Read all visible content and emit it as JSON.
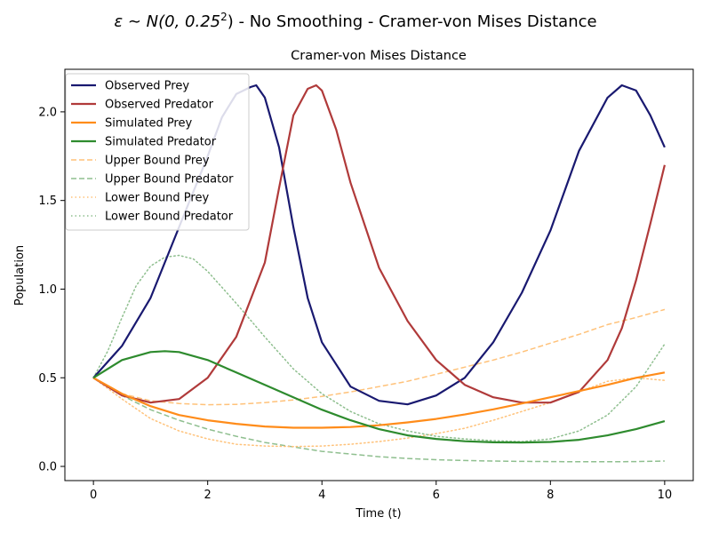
{
  "figure": {
    "suptitle_prefix": "ε ∼ N(0, 0.25",
    "suptitle_sup": "2",
    "suptitle_suffix": ") - No Smoothing - Cramer-von Mises Distance"
  },
  "chart_data": {
    "type": "line",
    "title": "Cramer-von Mises Distance",
    "xlabel": "Time (t)",
    "ylabel": "Population",
    "xlim": [
      -0.5,
      10.5
    ],
    "ylim": [
      -0.08,
      2.24
    ],
    "xticks": [
      0,
      2,
      4,
      6,
      8,
      10
    ],
    "yticks": [
      0.0,
      0.5,
      1.0,
      1.5,
      2.0
    ],
    "xtick_labels": [
      "0",
      "2",
      "4",
      "6",
      "8",
      "10"
    ],
    "ytick_labels": [
      "0.0",
      "0.5",
      "1.0",
      "1.5",
      "2.0"
    ],
    "grid": false,
    "legend_position": "upper-left",
    "series": [
      {
        "name": "Observed Prey",
        "color": "#191970",
        "style": "solid",
        "x": [
          0,
          0.5,
          1,
          1.5,
          2,
          2.25,
          2.5,
          2.75,
          2.85,
          3,
          3.25,
          3.5,
          3.75,
          4,
          4.5,
          5,
          5.5,
          6,
          6.5,
          7,
          7.5,
          8,
          8.5,
          9,
          9.25,
          9.5,
          9.75,
          10
        ],
        "y": [
          0.5,
          0.68,
          0.95,
          1.35,
          1.75,
          1.97,
          2.1,
          2.14,
          2.15,
          2.08,
          1.8,
          1.35,
          0.95,
          0.7,
          0.45,
          0.37,
          0.35,
          0.4,
          0.5,
          0.7,
          0.98,
          1.33,
          1.78,
          2.08,
          2.15,
          2.12,
          1.98,
          1.8
        ]
      },
      {
        "name": "Observed Predator",
        "color": "#b03a3a",
        "style": "solid",
        "x": [
          0,
          0.5,
          1,
          1.5,
          2,
          2.5,
          3,
          3.25,
          3.5,
          3.75,
          3.9,
          4,
          4.25,
          4.5,
          5,
          5.5,
          6,
          6.5,
          7,
          7.5,
          8,
          8.5,
          9,
          9.25,
          9.5,
          9.75,
          10
        ],
        "y": [
          0.5,
          0.4,
          0.36,
          0.38,
          0.5,
          0.73,
          1.15,
          1.57,
          1.98,
          2.13,
          2.15,
          2.12,
          1.9,
          1.6,
          1.12,
          0.82,
          0.6,
          0.46,
          0.39,
          0.36,
          0.36,
          0.42,
          0.6,
          0.78,
          1.05,
          1.37,
          1.7
        ]
      },
      {
        "name": "Simulated Prey",
        "color": "#ff8c1a",
        "style": "solid",
        "x": [
          0,
          0.5,
          1,
          1.5,
          2,
          2.5,
          3,
          3.5,
          4,
          4.5,
          5,
          5.5,
          6,
          6.5,
          7,
          7.5,
          8,
          8.5,
          9,
          9.5,
          10
        ],
        "y": [
          0.5,
          0.41,
          0.34,
          0.29,
          0.26,
          0.24,
          0.225,
          0.218,
          0.218,
          0.222,
          0.232,
          0.248,
          0.268,
          0.293,
          0.322,
          0.355,
          0.39,
          0.425,
          0.46,
          0.5,
          0.53
        ]
      },
      {
        "name": "Simulated Predator",
        "color": "#2e8b2e",
        "style": "solid",
        "x": [
          0,
          0.5,
          1,
          1.25,
          1.5,
          2,
          2.5,
          3,
          3.5,
          4,
          4.5,
          5,
          5.5,
          6,
          6.5,
          7,
          7.5,
          8,
          8.5,
          9,
          9.5,
          10
        ],
        "y": [
          0.5,
          0.6,
          0.645,
          0.65,
          0.645,
          0.6,
          0.53,
          0.46,
          0.39,
          0.32,
          0.26,
          0.21,
          0.175,
          0.155,
          0.142,
          0.136,
          0.135,
          0.138,
          0.15,
          0.175,
          0.21,
          0.255
        ]
      },
      {
        "name": "Upper Bound Prey",
        "color": "#ffc27a",
        "style": "dashed",
        "x": [
          0,
          0.5,
          1,
          1.5,
          2,
          2.5,
          3,
          3.5,
          4,
          4.5,
          5,
          5.5,
          6,
          6.5,
          7,
          7.5,
          8,
          8.5,
          9,
          9.5,
          10
        ],
        "y": [
          0.5,
          0.41,
          0.37,
          0.355,
          0.348,
          0.35,
          0.36,
          0.375,
          0.395,
          0.42,
          0.45,
          0.48,
          0.52,
          0.56,
          0.6,
          0.645,
          0.695,
          0.745,
          0.8,
          0.84,
          0.885
        ]
      },
      {
        "name": "Upper Bound Predator",
        "color": "#8fbf8f",
        "style": "dashed",
        "x": [
          0,
          0.5,
          1,
          1.5,
          2,
          2.5,
          3,
          3.5,
          4,
          4.5,
          5,
          5.5,
          6,
          6.5,
          7,
          7.5,
          8,
          8.5,
          9,
          9.5,
          10
        ],
        "y": [
          0.5,
          0.4,
          0.32,
          0.26,
          0.21,
          0.17,
          0.135,
          0.11,
          0.085,
          0.07,
          0.055,
          0.045,
          0.038,
          0.033,
          0.03,
          0.028,
          0.027,
          0.026,
          0.026,
          0.027,
          0.03
        ]
      },
      {
        "name": "Lower Bound Prey",
        "color": "#ffc27a",
        "style": "dotted",
        "x": [
          0,
          0.5,
          1,
          1.5,
          2,
          2.5,
          3,
          3.5,
          4,
          4.5,
          5,
          5.5,
          6,
          6.5,
          7,
          7.5,
          8,
          8.5,
          9,
          9.5,
          10
        ],
        "y": [
          0.5,
          0.38,
          0.27,
          0.2,
          0.155,
          0.125,
          0.115,
          0.112,
          0.115,
          0.125,
          0.14,
          0.16,
          0.185,
          0.215,
          0.26,
          0.31,
          0.36,
          0.42,
          0.48,
          0.5,
          0.485
        ]
      },
      {
        "name": "Lower Bound Predator",
        "color": "#8fbf8f",
        "style": "dotted",
        "x": [
          0,
          0.25,
          0.5,
          0.75,
          1,
          1.25,
          1.5,
          1.75,
          2,
          2.5,
          3,
          3.5,
          4,
          4.5,
          5,
          5.5,
          6,
          6.5,
          7,
          7.5,
          8,
          8.5,
          9,
          9.5,
          10
        ],
        "y": [
          0.5,
          0.65,
          0.84,
          1.02,
          1.13,
          1.18,
          1.19,
          1.17,
          1.1,
          0.92,
          0.73,
          0.55,
          0.41,
          0.31,
          0.24,
          0.2,
          0.17,
          0.155,
          0.145,
          0.14,
          0.155,
          0.2,
          0.29,
          0.45,
          0.69
        ]
      }
    ]
  }
}
